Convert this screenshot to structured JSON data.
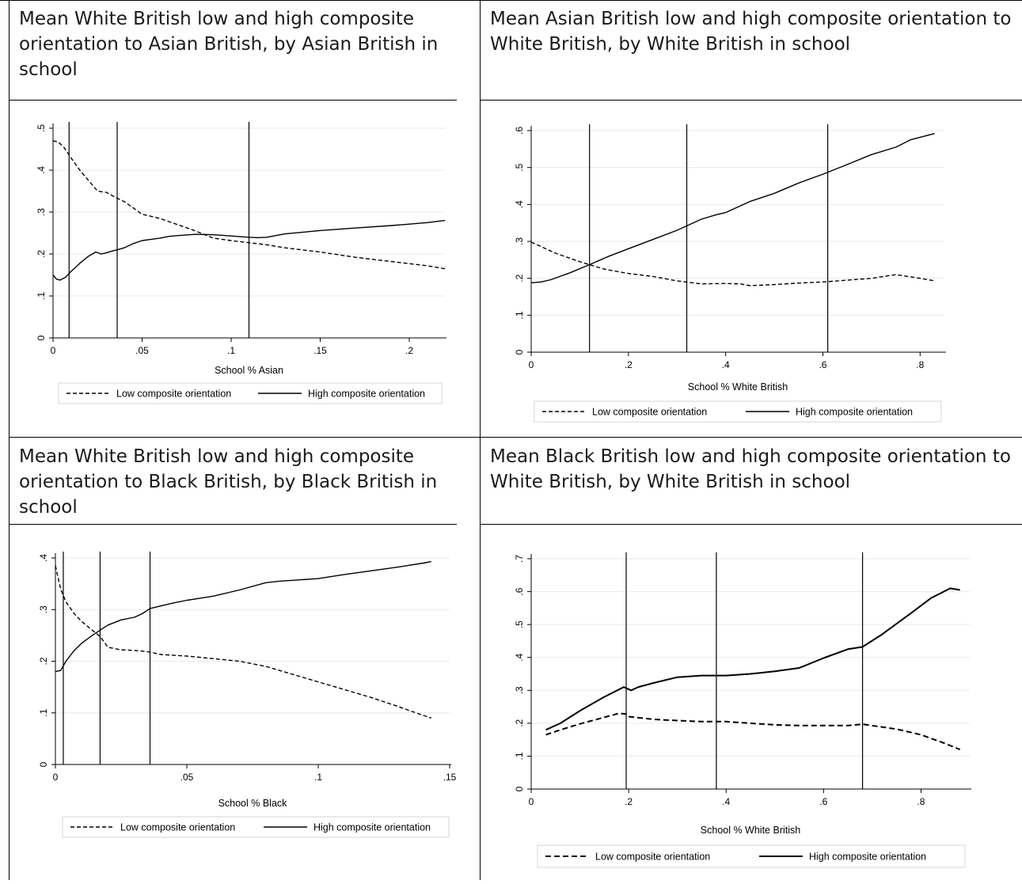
{
  "charts": [
    {
      "title": "Mean White British low and high composite orientation to Asian British, by Asian British in school",
      "chart_data": {
        "type": "line",
        "xlabel": "School % Asian",
        "ylabel": "",
        "xlim": [
          0,
          0.22
        ],
        "ylim": [
          0,
          0.5
        ],
        "xticks": [
          {
            "v": 0,
            "t": "0"
          },
          {
            "v": 0.05,
            "t": ".05"
          },
          {
            "v": 0.1,
            "t": ".1"
          },
          {
            "v": 0.15,
            "t": ".15"
          },
          {
            "v": 0.2,
            "t": ".2"
          }
        ],
        "yticks": [
          {
            "v": 0,
            "t": "0"
          },
          {
            "v": 0.1,
            "t": ".1"
          },
          {
            "v": 0.2,
            "t": ".2"
          },
          {
            "v": 0.3,
            "t": ".3"
          },
          {
            "v": 0.4,
            "t": ".4"
          },
          {
            "v": 0.5,
            "t": ".5"
          }
        ],
        "vlines": [
          0.009,
          0.036,
          0.11
        ],
        "grid": "horizontal",
        "legend_position": "bottom",
        "series": [
          {
            "name": "Low composite orientation",
            "style": "dashed",
            "x": [
              0,
              0.003,
              0.006,
              0.01,
              0.015,
              0.02,
              0.025,
              0.03,
              0.035,
              0.04,
              0.045,
              0.05,
              0.06,
              0.07,
              0.08,
              0.09,
              0.1,
              0.11,
              0.12,
              0.13,
              0.15,
              0.17,
              0.19,
              0.21,
              0.22
            ],
            "y": [
              0.47,
              0.467,
              0.455,
              0.43,
              0.4,
              0.375,
              0.35,
              0.347,
              0.335,
              0.325,
              0.31,
              0.295,
              0.285,
              0.27,
              0.255,
              0.238,
              0.232,
              0.227,
              0.222,
              0.215,
              0.205,
              0.192,
              0.182,
              0.172,
              0.165
            ]
          },
          {
            "name": "High composite orientation",
            "style": "solid",
            "x": [
              0,
              0.002,
              0.004,
              0.007,
              0.01,
              0.015,
              0.02,
              0.024,
              0.027,
              0.03,
              0.033,
              0.036,
              0.04,
              0.045,
              0.05,
              0.055,
              0.06,
              0.065,
              0.07,
              0.08,
              0.09,
              0.1,
              0.11,
              0.115,
              0.12,
              0.13,
              0.15,
              0.17,
              0.19,
              0.21,
              0.22
            ],
            "y": [
              0.15,
              0.14,
              0.138,
              0.145,
              0.158,
              0.178,
              0.195,
              0.205,
              0.2,
              0.203,
              0.207,
              0.21,
              0.215,
              0.225,
              0.232,
              0.235,
              0.238,
              0.242,
              0.244,
              0.247,
              0.246,
              0.243,
              0.24,
              0.239,
              0.24,
              0.248,
              0.256,
              0.262,
              0.268,
              0.275,
              0.28
            ]
          }
        ]
      }
    },
    {
      "title": "Mean Asian British low and high composite orientation to White British, by White British in school",
      "chart_data": {
        "type": "line",
        "xlabel": "School % White British",
        "ylabel": "",
        "xlim": [
          0,
          0.85
        ],
        "ylim": [
          0,
          0.6
        ],
        "xticks": [
          {
            "v": 0,
            "t": "0"
          },
          {
            "v": 0.2,
            "t": ".2"
          },
          {
            "v": 0.4,
            "t": ".4"
          },
          {
            "v": 0.6,
            "t": ".6"
          },
          {
            "v": 0.8,
            "t": ".8"
          }
        ],
        "yticks": [
          {
            "v": 0,
            "t": "0"
          },
          {
            "v": 0.1,
            "t": ".1"
          },
          {
            "v": 0.2,
            "t": ".2"
          },
          {
            "v": 0.3,
            "t": ".3"
          },
          {
            "v": 0.4,
            "t": ".4"
          },
          {
            "v": 0.5,
            "t": ".5"
          },
          {
            "v": 0.6,
            "t": ".6"
          }
        ],
        "vlines": [
          0.12,
          0.32,
          0.61
        ],
        "grid": "horizontal",
        "legend_position": "bottom",
        "series": [
          {
            "name": "Low composite orientation",
            "style": "dashed",
            "x": [
              0,
              0.05,
              0.1,
              0.15,
              0.2,
              0.25,
              0.3,
              0.35,
              0.4,
              0.43,
              0.45,
              0.5,
              0.55,
              0.6,
              0.65,
              0.7,
              0.75,
              0.8,
              0.83
            ],
            "y": [
              0.298,
              0.268,
              0.245,
              0.225,
              0.213,
              0.205,
              0.193,
              0.185,
              0.186,
              0.185,
              0.18,
              0.183,
              0.187,
              0.19,
              0.195,
              0.2,
              0.21,
              0.2,
              0.193
            ]
          },
          {
            "name": "High composite orientation",
            "style": "solid",
            "x": [
              0,
              0.02,
              0.04,
              0.08,
              0.12,
              0.16,
              0.2,
              0.25,
              0.3,
              0.35,
              0.38,
              0.4,
              0.42,
              0.45,
              0.5,
              0.55,
              0.6,
              0.65,
              0.7,
              0.75,
              0.78,
              0.83
            ],
            "y": [
              0.188,
              0.19,
              0.196,
              0.215,
              0.237,
              0.26,
              0.28,
              0.305,
              0.33,
              0.36,
              0.372,
              0.378,
              0.39,
              0.408,
              0.43,
              0.458,
              0.482,
              0.508,
              0.535,
              0.555,
              0.575,
              0.592
            ]
          }
        ]
      }
    },
    {
      "title": "Mean White British low and high composite orientation to Black British, by Black British in school",
      "chart_data": {
        "type": "line",
        "xlabel": "School % Black",
        "ylabel": "",
        "xlim": [
          0,
          0.15
        ],
        "ylim": [
          0,
          0.4
        ],
        "xticks": [
          {
            "v": 0,
            "t": "0"
          },
          {
            "v": 0.05,
            "t": ".05"
          },
          {
            "v": 0.1,
            "t": ".1"
          },
          {
            "v": 0.15,
            "t": ".15"
          }
        ],
        "yticks": [
          {
            "v": 0,
            "t": "0"
          },
          {
            "v": 0.1,
            "t": ".1"
          },
          {
            "v": 0.2,
            "t": ".2"
          },
          {
            "v": 0.3,
            "t": ".3"
          },
          {
            "v": 0.4,
            "t": ".4"
          }
        ],
        "vlines": [
          0.003,
          0.017,
          0.036
        ],
        "grid": "horizontal",
        "legend_position": "bottom",
        "series": [
          {
            "name": "Low composite orientation",
            "style": "dashed",
            "x": [
              0,
              0.002,
              0.004,
              0.007,
              0.01,
              0.014,
              0.017,
              0.02,
              0.025,
              0.03,
              0.036,
              0.04,
              0.05,
              0.06,
              0.07,
              0.08,
              0.09,
              0.1,
              0.11,
              0.12,
              0.13,
              0.14,
              0.143
            ],
            "y": [
              0.385,
              0.34,
              0.315,
              0.293,
              0.277,
              0.26,
              0.248,
              0.227,
              0.222,
              0.221,
              0.218,
              0.213,
              0.21,
              0.205,
              0.2,
              0.19,
              0.175,
              0.16,
              0.145,
              0.13,
              0.113,
              0.095,
              0.09
            ]
          },
          {
            "name": "High composite orientation",
            "style": "solid",
            "x": [
              0,
              0.002,
              0.004,
              0.007,
              0.01,
              0.014,
              0.017,
              0.02,
              0.025,
              0.03,
              0.033,
              0.036,
              0.04,
              0.045,
              0.05,
              0.06,
              0.07,
              0.08,
              0.085,
              0.1,
              0.11,
              0.12,
              0.13,
              0.14,
              0.143
            ],
            "y": [
              0.18,
              0.182,
              0.2,
              0.22,
              0.235,
              0.25,
              0.26,
              0.27,
              0.28,
              0.285,
              0.292,
              0.302,
              0.307,
              0.313,
              0.318,
              0.326,
              0.338,
              0.352,
              0.355,
              0.36,
              0.368,
              0.375,
              0.382,
              0.39,
              0.393
            ]
          }
        ]
      }
    },
    {
      "title": "Mean Black British low and high composite orientation to White  British, by White British in school",
      "chart_data": {
        "type": "line",
        "xlabel": "School % White British",
        "ylabel": "",
        "xlim": [
          0,
          0.9
        ],
        "ylim": [
          0,
          0.7
        ],
        "xticks": [
          {
            "v": 0,
            "t": "0"
          },
          {
            "v": 0.2,
            "t": ".2"
          },
          {
            "v": 0.4,
            "t": ".4"
          },
          {
            "v": 0.6,
            "t": ".6"
          },
          {
            "v": 0.8,
            "t": ".8"
          }
        ],
        "yticks": [
          {
            "v": 0,
            "t": "0"
          },
          {
            "v": 0.1,
            "t": ".1"
          },
          {
            "v": 0.2,
            "t": ".2"
          },
          {
            "v": 0.3,
            "t": ".3"
          },
          {
            "v": 0.4,
            "t": ".4"
          },
          {
            "v": 0.5,
            "t": ".5"
          },
          {
            "v": 0.6,
            "t": ".6"
          },
          {
            "v": 0.7,
            "t": ".7"
          }
        ],
        "vlines": [
          0.195,
          0.38,
          0.68
        ],
        "grid": "horizontal",
        "legend_position": "bottom",
        "series": [
          {
            "name": "Low composite orientation",
            "style": "dashed",
            "x": [
              0.03,
              0.06,
              0.1,
              0.15,
              0.18,
              0.195,
              0.2,
              0.25,
              0.3,
              0.35,
              0.4,
              0.45,
              0.5,
              0.55,
              0.6,
              0.65,
              0.68,
              0.75,
              0.8,
              0.85,
              0.88
            ],
            "y": [
              0.165,
              0.18,
              0.198,
              0.218,
              0.23,
              0.228,
              0.22,
              0.212,
              0.208,
              0.205,
              0.205,
              0.2,
              0.195,
              0.193,
              0.193,
              0.193,
              0.197,
              0.182,
              0.165,
              0.138,
              0.12
            ]
          },
          {
            "name": "High composite orientation",
            "style": "solid",
            "x": [
              0.03,
              0.06,
              0.1,
              0.15,
              0.19,
              0.205,
              0.22,
              0.25,
              0.3,
              0.35,
              0.4,
              0.45,
              0.5,
              0.55,
              0.6,
              0.65,
              0.68,
              0.72,
              0.78,
              0.82,
              0.86,
              0.88
            ],
            "y": [
              0.18,
              0.2,
              0.238,
              0.28,
              0.31,
              0.3,
              0.31,
              0.322,
              0.34,
              0.345,
              0.345,
              0.35,
              0.358,
              0.368,
              0.398,
              0.425,
              0.432,
              0.47,
              0.535,
              0.58,
              0.61,
              0.605
            ]
          }
        ]
      }
    }
  ]
}
